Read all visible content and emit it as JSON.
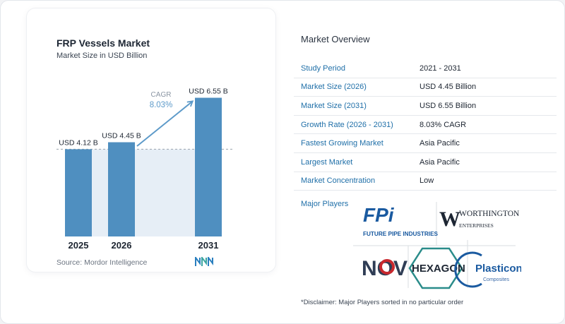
{
  "chart_card": {
    "title": "FRP Vessels Market",
    "subtitle": "Market Size in USD Billion",
    "source": "Source: Mordor Intelligence"
  },
  "chart_data": {
    "type": "bar",
    "categories": [
      "2025",
      "2026",
      "2031"
    ],
    "values": [
      4.12,
      4.45,
      6.55
    ],
    "value_labels": [
      "USD 4.12 B",
      "USD 4.45 B",
      "USD 6.55 B"
    ],
    "cagr_label": "CAGR",
    "cagr_value": "8.03%",
    "bar_color": "#4f8fc0",
    "reference_fill": "#e6eef6",
    "cagr_color": "#5d9ac9",
    "ylim": [
      0,
      6.9
    ],
    "title": "FRP Vessels Market",
    "ylabel": "Market Size in USD Billion"
  },
  "overview": {
    "title": "Market Overview",
    "rows": [
      {
        "label": "Study Period",
        "value": "2021 - 2031"
      },
      {
        "label": "Market Size (2026)",
        "value": "USD 4.45 Billion"
      },
      {
        "label": "Market Size (2031)",
        "value": "USD 6.55 Billion"
      },
      {
        "label": "Growth Rate (2026 - 2031)",
        "value": "8.03% CAGR"
      },
      {
        "label": "Fastest Growing Market",
        "value": "Asia Pacific"
      },
      {
        "label": "Largest Market",
        "value": "Asia Pacific"
      },
      {
        "label": "Market Concentration",
        "value": "Low"
      }
    ],
    "major_players_label": "Major Players",
    "players": [
      {
        "name": "FUTURE PIPE INDUSTRIES",
        "mark": "FPi"
      },
      {
        "name": "WORTHINGTON",
        "sub": "ENTERPRISES",
        "mark": "W"
      },
      {
        "name": "NOV",
        "mark": "NOV"
      },
      {
        "name": "HEXAGON",
        "mark": "HEXAGON"
      },
      {
        "name": "Plasticon",
        "sub": "Composites",
        "mark": "Plasticon"
      }
    ],
    "disclaimer": "*Disclaimer: Major Players sorted in no particular order"
  },
  "colors": {
    "accent_blue": "#1f6fa8",
    "bar_blue": "#4f8fc0",
    "logo_blue": "#1a5aa0",
    "logo_teal": "#3aa5a0"
  }
}
